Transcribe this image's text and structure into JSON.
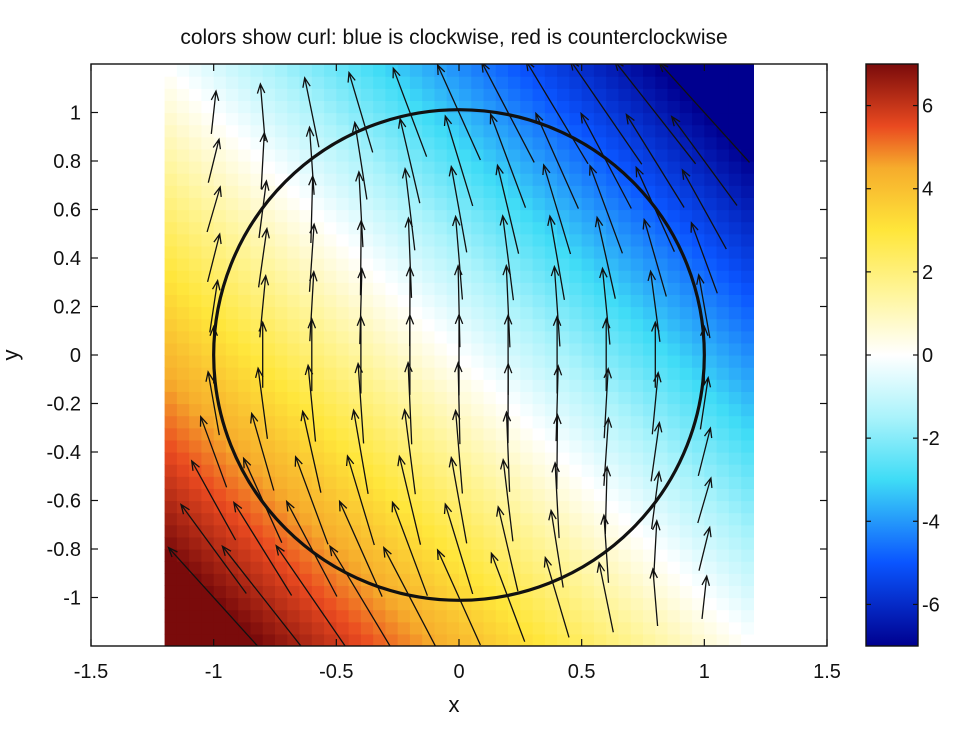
{
  "chart_data": {
    "type": "heatmap",
    "title": "colors show curl: blue is clockwise, red is counterclockwise",
    "xlabel": "x",
    "ylabel": "y",
    "xlim": [
      -1.5,
      1.5
    ],
    "ylim": [
      -1.2,
      1.2
    ],
    "x_ticks": [
      -1.5,
      -1,
      -0.5,
      0,
      0.5,
      1,
      1.5
    ],
    "x_tick_labels": [
      "-1.5",
      "-1",
      "-0.5",
      "0",
      "0.5",
      "1",
      "1.5"
    ],
    "y_ticks": [
      1,
      0.8,
      0.6,
      0.4,
      0.2,
      0,
      -0.2,
      -0.4,
      -0.6,
      -0.8,
      -1
    ],
    "y_tick_labels": [
      "1",
      "0.8",
      "0.6",
      "0.4",
      "0.2",
      "0",
      "-0.2",
      "-0.4",
      "-0.6",
      "-0.8",
      "-1"
    ],
    "grid": false,
    "heatmap_extent": {
      "x": [
        -1.2,
        1.2
      ],
      "y": [
        -1.2,
        1.2
      ]
    },
    "curl_field": "curl(x,y) = -3.5*(x + y)",
    "colorbar": {
      "range": [
        -7,
        7
      ],
      "ticks": [
        6,
        4,
        2,
        0,
        -2,
        -4,
        -6
      ],
      "tick_labels": [
        "6",
        "4",
        "2",
        "0",
        "-2",
        "-4",
        "-6"
      ],
      "colors": {
        "-7": "#00008f",
        "-5": "#0a55ff",
        "-3": "#3fdcf6",
        "-1.5": "#aaf3fb",
        "0": "#ffffff",
        "1.5": "#fff59a",
        "3": "#ffe63a",
        "4.5": "#f6ac2c",
        "5.5": "#ea4a20",
        "7": "#7a0b0b"
      }
    },
    "circle": {
      "center": [
        0,
        0
      ],
      "radius": 1
    },
    "quiver": {
      "x_positions": [
        -1.0,
        -0.8,
        -0.6,
        -0.4,
        -0.2,
        0,
        0.2,
        0.4,
        0.6,
        0.8,
        1.0
      ],
      "y_positions": [
        -1.0,
        -0.8,
        -0.6,
        -0.4,
        -0.2,
        0,
        0.2,
        0.4,
        0.6,
        0.8,
        1.0
      ],
      "vector_field": "u = -0.45*y^2 - 0.5*x*y ; v = 0.85 - 0.25*x^2 + 0.3*x*y + 0.15*y^2"
    }
  }
}
